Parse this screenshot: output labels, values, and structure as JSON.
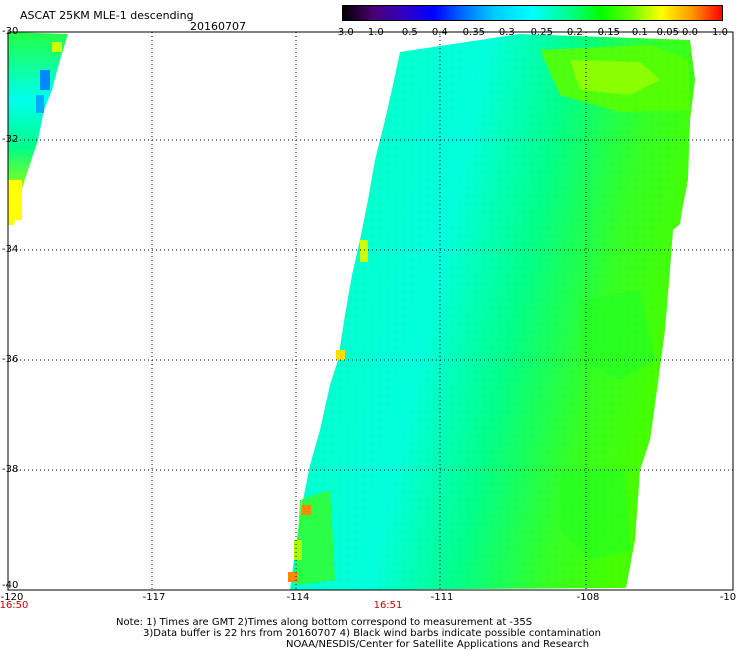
{
  "header": {
    "title": "ASCAT 25KM MLE-1 descending",
    "date": "20160707"
  },
  "colorbar": {
    "ticks": [
      "-3.0",
      "-1.0",
      "-0.5",
      "-0.4",
      "-0.35",
      "-0.3",
      "-0.25",
      "-0.2",
      "-0.15",
      "-0.1",
      "-0.05",
      "0.0",
      "1.0"
    ]
  },
  "axes": {
    "lat_labels": [
      "-30",
      "-32",
      "-34",
      "-36",
      "-38",
      "-40"
    ],
    "lon_labels": [
      "-120",
      "-117",
      "-114",
      "-111",
      "-108",
      "-10"
    ],
    "time_labels": [
      "16:50",
      "16:51"
    ]
  },
  "notes": {
    "line1": "Note: 1) Times are GMT 2)Times along bottom correspond to measurement at -35S",
    "line2": "3)Data buffer is 22 hrs from 20160707 4) Black wind barbs indicate possible contamination",
    "line3": "NOAA/NESDIS/Center for Satellite Applications and Research"
  },
  "colors": {
    "swath_base": "#00ff66",
    "swath_cyan": "#00ffdd",
    "swath_green": "#22ff22",
    "grid": "#000000",
    "time_label": "#cc0000"
  }
}
